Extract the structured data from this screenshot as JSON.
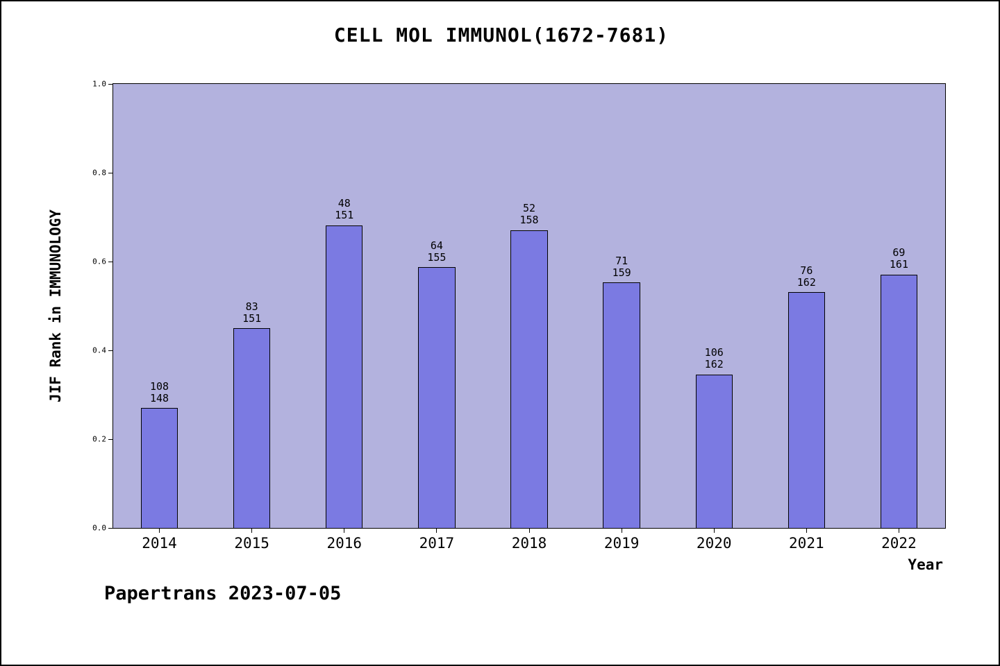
{
  "footer": "Papertrans 2023-07-05",
  "chart_data": {
    "type": "bar",
    "title": "CELL MOL IMMUNOL(1672-7681)",
    "xlabel": "Year",
    "ylabel": "JIF Rank in IMMUNOLOGY",
    "ylim": [
      0.0,
      1.0
    ],
    "ytick_labels": [
      "0.0",
      "0.2",
      "0.4",
      "0.6",
      "0.8",
      "1.0"
    ],
    "ytick_values": [
      0.0,
      0.2,
      0.4,
      0.6,
      0.8,
      1.0
    ],
    "grid": false,
    "legend": "none",
    "categories": [
      "2014",
      "2015",
      "2016",
      "2017",
      "2018",
      "2019",
      "2020",
      "2021",
      "2022"
    ],
    "values": [
      0.27,
      0.45,
      0.682,
      0.587,
      0.671,
      0.553,
      0.346,
      0.531,
      0.571
    ],
    "bar_labels": [
      [
        "108",
        "148"
      ],
      [
        "83",
        "151"
      ],
      [
        "48",
        "151"
      ],
      [
        "64",
        "155"
      ],
      [
        "52",
        "158"
      ],
      [
        "71",
        "159"
      ],
      [
        "106",
        "162"
      ],
      [
        "76",
        "162"
      ],
      [
        "69",
        "161"
      ]
    ],
    "colors": {
      "bar_fill": "#7b7ae2",
      "bar_border": "#000000",
      "plot_background": "#b3b2de",
      "page_background": "#ffffff",
      "text": "#000000"
    }
  }
}
